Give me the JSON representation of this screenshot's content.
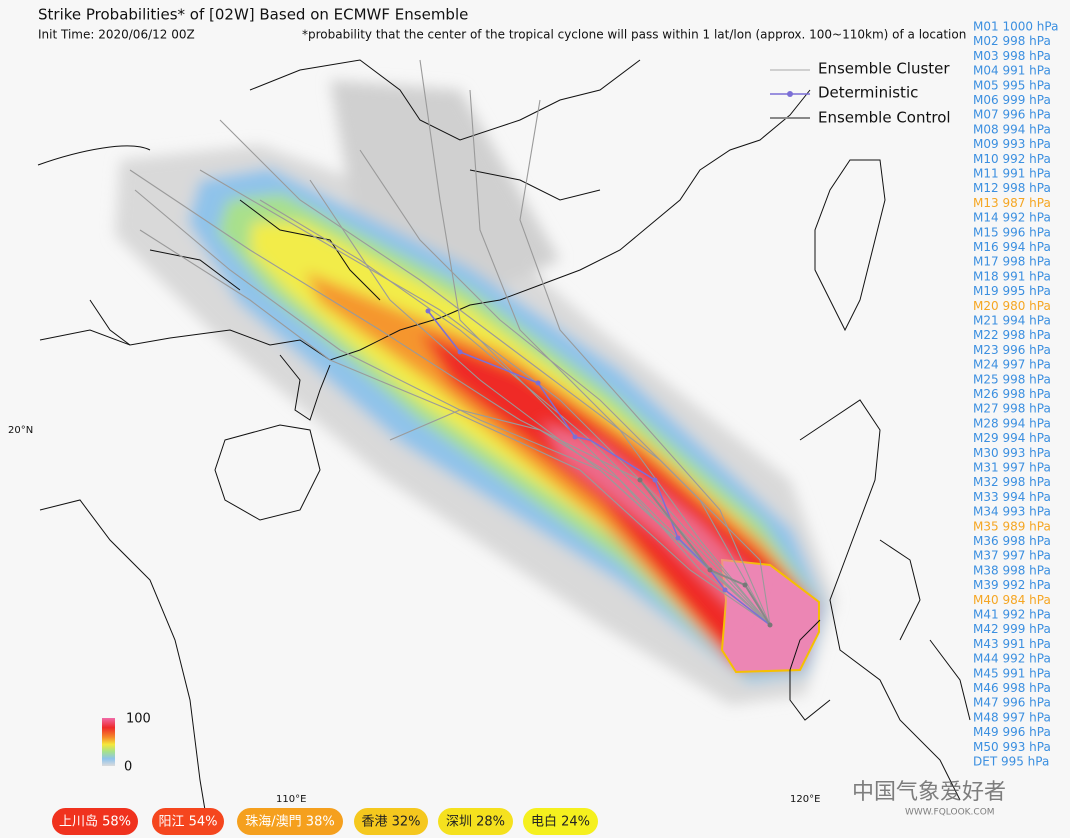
{
  "header": {
    "title": "Strike Probabilities* of [02W] Based on ECMWF Ensemble",
    "init_time": "Init Time: 2020/06/12 00Z",
    "note": "*probability that the center of the tropical cyclone will pass within 1 lat/lon (approx. 100~110km) of a location"
  },
  "legend": {
    "cluster": "Ensemble Cluster",
    "deterministic": "Deterministic",
    "control": "Ensemble Control"
  },
  "colorbar": {
    "max": "100",
    "min": "0"
  },
  "axis_labels": {
    "lat20": "20°N",
    "lon110": "110°E",
    "lon120": "120°E"
  },
  "members": [
    {
      "label": "M01 1000 hPa",
      "color": "#3b8fe0"
    },
    {
      "label": "M02 998 hPa",
      "color": "#3b8fe0"
    },
    {
      "label": "M03 998 hPa",
      "color": "#3b8fe0"
    },
    {
      "label": "M04 991 hPa",
      "color": "#3b8fe0"
    },
    {
      "label": "M05 995 hPa",
      "color": "#3b8fe0"
    },
    {
      "label": "M06 999 hPa",
      "color": "#3b8fe0"
    },
    {
      "label": "M07 996 hPa",
      "color": "#3b8fe0"
    },
    {
      "label": "M08 994 hPa",
      "color": "#3b8fe0"
    },
    {
      "label": "M09 993 hPa",
      "color": "#3b8fe0"
    },
    {
      "label": "M10 992 hPa",
      "color": "#3b8fe0"
    },
    {
      "label": "M11 991 hPa",
      "color": "#3b8fe0"
    },
    {
      "label": "M12 998 hPa",
      "color": "#3b8fe0"
    },
    {
      "label": "M13 987 hPa",
      "color": "#f5a623"
    },
    {
      "label": "M14 992 hPa",
      "color": "#3b8fe0"
    },
    {
      "label": "M15 996 hPa",
      "color": "#3b8fe0"
    },
    {
      "label": "M16 994 hPa",
      "color": "#3b8fe0"
    },
    {
      "label": "M17 998 hPa",
      "color": "#3b8fe0"
    },
    {
      "label": "M18 991 hPa",
      "color": "#3b8fe0"
    },
    {
      "label": "M19 995 hPa",
      "color": "#3b8fe0"
    },
    {
      "label": "M20 980 hPa",
      "color": "#f5a623"
    },
    {
      "label": "M21 994 hPa",
      "color": "#3b8fe0"
    },
    {
      "label": "M22 998 hPa",
      "color": "#3b8fe0"
    },
    {
      "label": "M23 996 hPa",
      "color": "#3b8fe0"
    },
    {
      "label": "M24 997 hPa",
      "color": "#3b8fe0"
    },
    {
      "label": "M25 998 hPa",
      "color": "#3b8fe0"
    },
    {
      "label": "M26 998 hPa",
      "color": "#3b8fe0"
    },
    {
      "label": "M27 998 hPa",
      "color": "#3b8fe0"
    },
    {
      "label": "M28 994 hPa",
      "color": "#3b8fe0"
    },
    {
      "label": "M29 994 hPa",
      "color": "#3b8fe0"
    },
    {
      "label": "M30 993 hPa",
      "color": "#3b8fe0"
    },
    {
      "label": "M31 997 hPa",
      "color": "#3b8fe0"
    },
    {
      "label": "M32 998 hPa",
      "color": "#3b8fe0"
    },
    {
      "label": "M33 994 hPa",
      "color": "#3b8fe0"
    },
    {
      "label": "M34 993 hPa",
      "color": "#3b8fe0"
    },
    {
      "label": "M35 989 hPa",
      "color": "#f5a623"
    },
    {
      "label": "M36 998 hPa",
      "color": "#3b8fe0"
    },
    {
      "label": "M37 997 hPa",
      "color": "#3b8fe0"
    },
    {
      "label": "M38 998 hPa",
      "color": "#3b8fe0"
    },
    {
      "label": "M39 992 hPa",
      "color": "#3b8fe0"
    },
    {
      "label": "M40 984 hPa",
      "color": "#f5a623"
    },
    {
      "label": "M41 992 hPa",
      "color": "#3b8fe0"
    },
    {
      "label": "M42 999 hPa",
      "color": "#3b8fe0"
    },
    {
      "label": "M43 991 hPa",
      "color": "#3b8fe0"
    },
    {
      "label": "M44 992 hPa",
      "color": "#3b8fe0"
    },
    {
      "label": "M45 991 hPa",
      "color": "#3b8fe0"
    },
    {
      "label": "M46 998 hPa",
      "color": "#3b8fe0"
    },
    {
      "label": "M47 996 hPa",
      "color": "#3b8fe0"
    },
    {
      "label": "M48 997 hPa",
      "color": "#3b8fe0"
    },
    {
      "label": "M49 996 hPa",
      "color": "#3b8fe0"
    },
    {
      "label": "M50 993 hPa",
      "color": "#3b8fe0"
    },
    {
      "label": "DET 995 hPa",
      "color": "#3b8fe0"
    }
  ],
  "locations": [
    {
      "label": "上川岛 58%",
      "color": "#f0321e"
    },
    {
      "label": "阳江 54%",
      "color": "#f5461e"
    },
    {
      "label": "珠海/澳門 38%",
      "color": "#f5a01e"
    },
    {
      "label": "香港 32%",
      "color": "#f5c81e"
    },
    {
      "label": "深圳 28%",
      "color": "#f5e11e"
    },
    {
      "label": "电白 24%",
      "color": "#f5f01e"
    }
  ],
  "watermark": {
    "name": "中国气象爱好者",
    "url": "WWW.FQLOOK.COM"
  }
}
